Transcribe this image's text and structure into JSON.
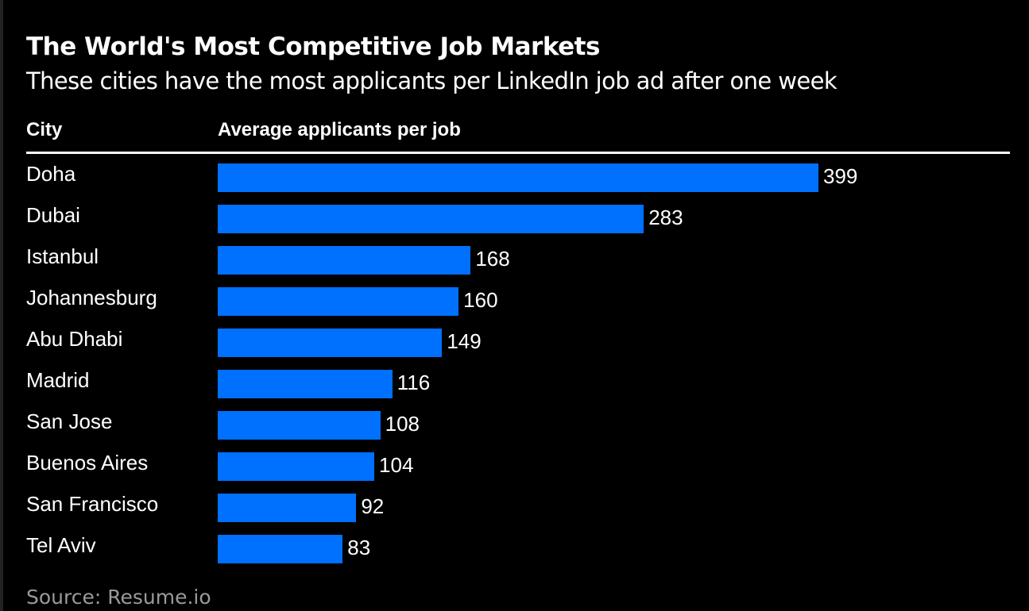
{
  "title": "The World's Most Competitive Job Markets",
  "subtitle": "These cities have the most applicants per LinkedIn job ad after one week",
  "source": "Source: Resume.io",
  "chart_data": {
    "type": "bar",
    "orientation": "horizontal",
    "column_headers": {
      "category": "City",
      "value": "Average applicants per job"
    },
    "categories": [
      "Doha",
      "Dubai",
      "Istanbul",
      "Johannesburg",
      "Abu Dhabi",
      "Madrid",
      "San Jose",
      "Buenos Aires",
      "San Francisco",
      "Tel Aviv"
    ],
    "values": [
      399,
      283,
      168,
      160,
      149,
      116,
      108,
      104,
      92,
      83
    ],
    "bar_color": "#0070ff",
    "background": "#000000",
    "data_labels": true,
    "grid": false
  }
}
